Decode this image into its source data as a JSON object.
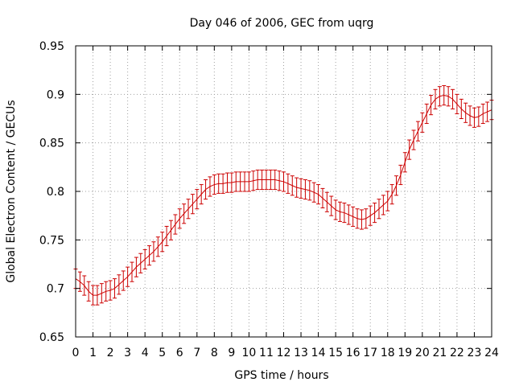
{
  "chart_data": {
    "type": "line",
    "title": "Day 046 of 2006, GEC from uqrg",
    "xlabel": "GPS time / hours",
    "ylabel": "Global Electron Content / GECUs",
    "xlim": [
      0,
      24
    ],
    "ylim": [
      0.65,
      0.95
    ],
    "grid": true,
    "legend": "none",
    "series_color": "#cc0000",
    "x_ticks": [
      "0",
      "1",
      "2",
      "3",
      "4",
      "5",
      "6",
      "7",
      "8",
      "9",
      "10",
      "11",
      "12",
      "13",
      "14",
      "15",
      "16",
      "17",
      "18",
      "19",
      "20",
      "21",
      "22",
      "23",
      "24"
    ],
    "y_ticks": [
      "0.65",
      "0.7",
      "0.75",
      "0.8",
      "0.85",
      "0.9",
      "0.95"
    ],
    "error": 0.01,
    "series": [
      {
        "x": [
          0,
          0.25,
          0.5,
          0.75,
          1,
          1.25,
          1.5,
          1.75,
          2,
          2.25,
          2.5,
          2.75,
          3,
          3.25,
          3.5,
          3.75,
          4,
          4.25,
          4.5,
          4.75,
          5,
          5.25,
          5.5,
          5.75,
          6,
          6.25,
          6.5,
          6.75,
          7,
          7.25,
          7.5,
          7.75,
          8,
          8.25,
          8.5,
          8.75,
          9,
          9.25,
          9.5,
          9.75,
          10,
          10.25,
          10.5,
          10.75,
          11,
          11.25,
          11.5,
          11.75,
          12,
          12.25,
          12.5,
          12.75,
          13,
          13.25,
          13.5,
          13.75,
          14,
          14.25,
          14.5,
          14.75,
          15,
          15.25,
          15.5,
          15.75,
          16,
          16.25,
          16.5,
          16.75,
          17,
          17.25,
          17.5,
          17.75,
          18,
          18.25,
          18.5,
          18.75,
          19,
          19.25,
          19.5,
          19.75,
          20,
          20.25,
          20.5,
          20.75,
          21,
          21.25,
          21.5,
          21.75,
          22,
          22.25,
          22.5,
          22.75,
          23,
          23.25,
          23.5,
          23.75,
          24
        ],
        "y": [
          0.71,
          0.707,
          0.703,
          0.697,
          0.693,
          0.693,
          0.695,
          0.697,
          0.698,
          0.7,
          0.704,
          0.708,
          0.712,
          0.717,
          0.722,
          0.726,
          0.73,
          0.734,
          0.738,
          0.743,
          0.748,
          0.754,
          0.76,
          0.766,
          0.772,
          0.777,
          0.782,
          0.787,
          0.792,
          0.797,
          0.802,
          0.805,
          0.807,
          0.808,
          0.808,
          0.809,
          0.809,
          0.81,
          0.81,
          0.81,
          0.81,
          0.811,
          0.812,
          0.812,
          0.812,
          0.812,
          0.812,
          0.811,
          0.81,
          0.808,
          0.806,
          0.804,
          0.803,
          0.802,
          0.801,
          0.799,
          0.797,
          0.793,
          0.789,
          0.785,
          0.781,
          0.779,
          0.778,
          0.776,
          0.774,
          0.772,
          0.771,
          0.772,
          0.775,
          0.778,
          0.782,
          0.786,
          0.79,
          0.797,
          0.806,
          0.817,
          0.83,
          0.843,
          0.853,
          0.862,
          0.871,
          0.88,
          0.889,
          0.895,
          0.898,
          0.899,
          0.898,
          0.895,
          0.89,
          0.885,
          0.881,
          0.878,
          0.876,
          0.877,
          0.88,
          0.882,
          0.884
        ]
      }
    ]
  }
}
